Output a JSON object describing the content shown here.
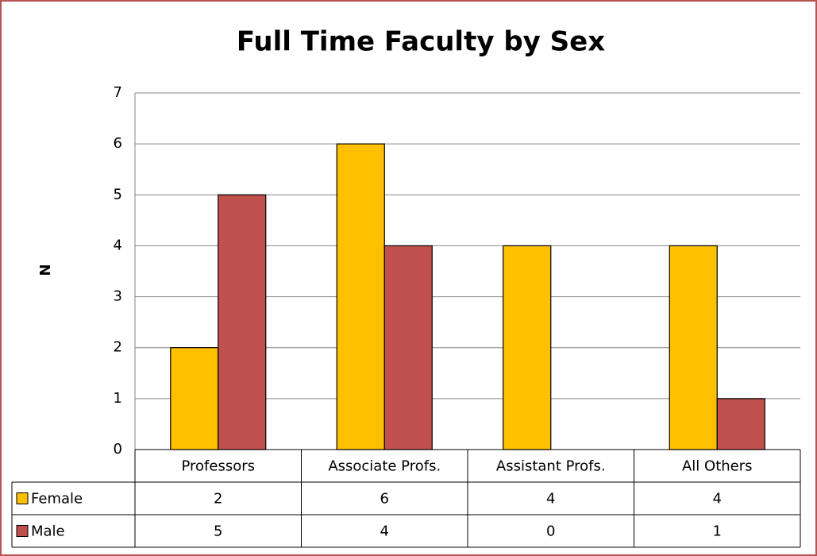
{
  "chart_data": {
    "type": "bar",
    "title": "Full Time Faculty by Sex",
    "y_label": "N",
    "categories": [
      "Professors",
      "Associate Profs.",
      "Assistant Profs.",
      "All Others"
    ],
    "series": [
      {
        "name": "Female",
        "color": "#ffc000",
        "values": [
          2,
          6,
          4,
          4
        ]
      },
      {
        "name": "Male",
        "color": "#c0504d",
        "values": [
          5,
          4,
          0,
          1
        ]
      }
    ],
    "ylim": [
      0,
      7
    ],
    "yticks": [
      0,
      1,
      2,
      3,
      4,
      5,
      6,
      7
    ],
    "grid": true,
    "data_table": true
  }
}
